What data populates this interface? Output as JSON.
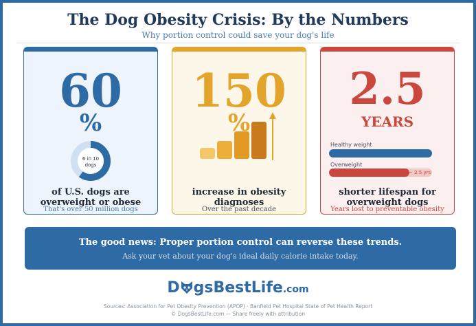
{
  "header": {
    "title": "The Dog Obesity Crisis: By the Numbers",
    "subtitle": "Why portion control could save your dog's life"
  },
  "cards": [
    {
      "value": "60",
      "unit": "%",
      "donut_label_1": "6 in 10",
      "donut_label_2": "dogs",
      "donut_fraction": 0.6,
      "caption_1": "of U.S. dogs are",
      "caption_2": "overweight or obese",
      "note": "That's over 50 million dogs",
      "accent": "#2e6aa3"
    },
    {
      "value": "150",
      "unit": "%",
      "caption_1": "increase in obesity",
      "caption_2": "diagnoses",
      "note": "Over the past decade",
      "accent": "#e3a42b",
      "icon": "growth-bars-icon"
    },
    {
      "value": "2.5",
      "unit": "YEARS",
      "healthy_label": "Healthy weight",
      "overweight_label": "Overweight",
      "years_lost": "− 2.5 yrs",
      "overweight_fraction": 0.78,
      "caption_1": "shorter lifespan for",
      "caption_2": "overweight dogs",
      "note": "Years lost to preventable obesity",
      "accent": "#c9473d"
    }
  ],
  "banner": {
    "line1": "The good news: Proper portion control can reverse these trends.",
    "line2": "Ask your vet about your dog's ideal daily calorie intake today."
  },
  "footer": {
    "brand_pre": "D",
    "brand_mid": "gsBestLife",
    "brand_tld": ".com",
    "brand_icon": "dog-face-icon",
    "sources": "Sources: Association for Pet Obesity Prevention (APOP)  ·  Banfield Pet Hospital State of Pet Health Report",
    "copyright": "© DogsBestLife.com — Share freely with attribution"
  }
}
